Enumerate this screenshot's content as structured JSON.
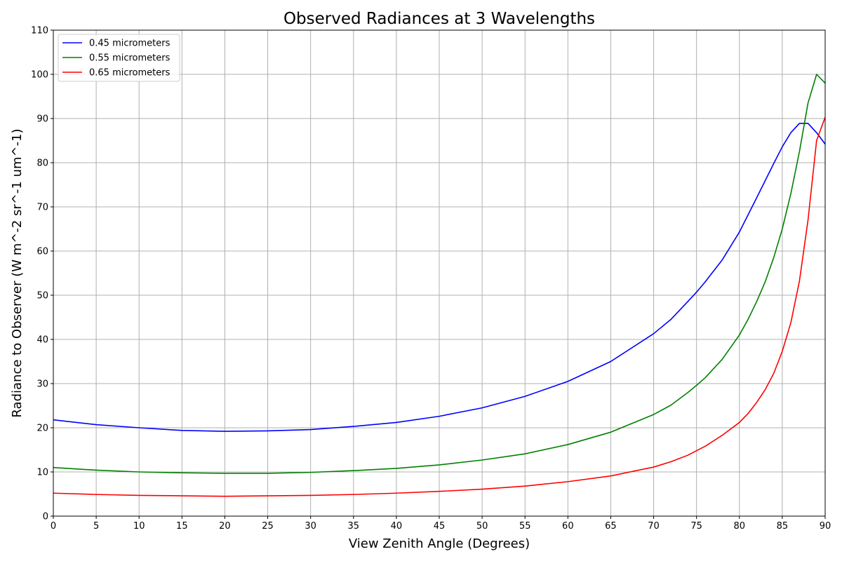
{
  "chart_data": {
    "type": "line",
    "title": "Observed Radiances at 3 Wavelengths",
    "xlabel": "View Zenith Angle (Degrees)",
    "ylabel": "Radiance to Observer (W m^-2 sr^-1 um^-1)",
    "xlim": [
      0,
      90
    ],
    "ylim": [
      0,
      110
    ],
    "xticks": [
      0,
      5,
      10,
      15,
      20,
      25,
      30,
      35,
      40,
      45,
      50,
      55,
      60,
      65,
      70,
      75,
      80,
      85,
      90
    ],
    "yticks": [
      0,
      10,
      20,
      30,
      40,
      50,
      60,
      70,
      80,
      90,
      100,
      110
    ],
    "grid": true,
    "legend_position": "upper-left",
    "series": [
      {
        "name": "0.45 micrometers",
        "color": "#0000ff",
        "x": [
          0,
          5,
          10,
          15,
          20,
          25,
          30,
          35,
          40,
          45,
          50,
          55,
          60,
          65,
          70,
          72,
          74,
          75,
          76,
          78,
          80,
          82,
          84,
          85,
          86,
          87,
          88,
          89,
          90
        ],
        "y": [
          21.8,
          20.7,
          20.0,
          19.4,
          19.2,
          19.3,
          19.6,
          20.3,
          21.2,
          22.6,
          24.5,
          27.1,
          30.5,
          35.0,
          41.3,
          44.5,
          48.6,
          50.7,
          53.0,
          58.0,
          64.3,
          72.0,
          79.8,
          83.6,
          86.8,
          88.9,
          88.9,
          86.8,
          84.2
        ]
      },
      {
        "name": "0.55 micrometers",
        "color": "#008000",
        "x": [
          0,
          5,
          10,
          15,
          20,
          25,
          30,
          35,
          40,
          45,
          50,
          55,
          60,
          65,
          70,
          72,
          74,
          75,
          76,
          78,
          80,
          81,
          82,
          83,
          84,
          85,
          86,
          87,
          88,
          89,
          90
        ],
        "y": [
          11.0,
          10.4,
          10.0,
          9.8,
          9.7,
          9.7,
          9.9,
          10.3,
          10.8,
          11.6,
          12.7,
          14.1,
          16.2,
          19.0,
          23.0,
          25.1,
          28.0,
          29.6,
          31.3,
          35.5,
          41.0,
          44.5,
          48.5,
          53.0,
          58.5,
          65.0,
          73.0,
          82.5,
          93.5,
          100.0,
          98.0
        ]
      },
      {
        "name": "0.65 micrometers",
        "color": "#ff0000",
        "x": [
          0,
          5,
          10,
          15,
          20,
          25,
          30,
          35,
          40,
          45,
          50,
          55,
          60,
          65,
          70,
          72,
          74,
          76,
          78,
          80,
          81,
          82,
          83,
          84,
          85,
          86,
          87,
          88,
          89,
          90
        ],
        "y": [
          5.2,
          4.9,
          4.7,
          4.6,
          4.5,
          4.6,
          4.7,
          4.9,
          5.2,
          5.6,
          6.1,
          6.8,
          7.8,
          9.1,
          11.1,
          12.3,
          13.8,
          15.8,
          18.3,
          21.2,
          23.2,
          25.7,
          28.6,
          32.3,
          37.3,
          43.8,
          53.2,
          67.0,
          85.0,
          90.3
        ]
      }
    ]
  }
}
